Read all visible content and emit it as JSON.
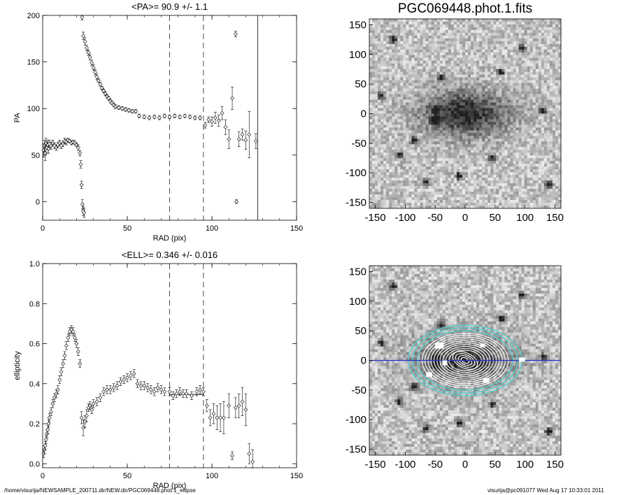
{
  "page_title": "PGC069448.phot.1.fits",
  "footer": {
    "path": "/home/visurija/NEWSAMPLE_200711.dir/NEW.dir/PGC069448.phot.1_ellipse",
    "stamp": "visurija@pc091077  Wed Aug 17 10:33:01 2011"
  },
  "colors": {
    "cyan": "#55cccc",
    "blue": "#2233cc",
    "ellipse": "#ffffff"
  },
  "chart_data": [
    {
      "type": "scatter",
      "title": "<PA>=  90.9 +/-   1.1",
      "xlabel": "RAD (pix)",
      "ylabel": "PA",
      "xlim": [
        0,
        150
      ],
      "ylim": [
        -20,
        200
      ],
      "xticks": [
        "0",
        "50",
        "100",
        "150"
      ],
      "yticks": [
        "0",
        "50",
        "100",
        "150",
        "200"
      ],
      "dashed_lines_x": [
        75,
        95
      ],
      "solid_line_x": 127,
      "points": [
        [
          0.5,
          55,
          7
        ],
        [
          1,
          60,
          6
        ],
        [
          1.5,
          52,
          8
        ],
        [
          2,
          63,
          5
        ],
        [
          2.5,
          58,
          6
        ],
        [
          3,
          61,
          5
        ],
        [
          3.5,
          57,
          5
        ],
        [
          4,
          62,
          4
        ],
        [
          5,
          60,
          4
        ],
        [
          6,
          63,
          3
        ],
        [
          7,
          60,
          3
        ],
        [
          8,
          58,
          3
        ],
        [
          9,
          61,
          3
        ],
        [
          10,
          63,
          3
        ],
        [
          11,
          60,
          3
        ],
        [
          12,
          62,
          3
        ],
        [
          13,
          65,
          3
        ],
        [
          14,
          64,
          3
        ],
        [
          15,
          66,
          2
        ],
        [
          16,
          65,
          2
        ],
        [
          17,
          63,
          2
        ],
        [
          18,
          64,
          2
        ],
        [
          19,
          63,
          2
        ],
        [
          20,
          61,
          2
        ],
        [
          21,
          58,
          3
        ],
        [
          22,
          52,
          3
        ],
        [
          22.5,
          40,
          4
        ],
        [
          23,
          18,
          4
        ],
        [
          23.5,
          -3,
          5
        ],
        [
          24,
          -10,
          5
        ],
        [
          24.5,
          -12,
          5
        ],
        [
          23.3,
          198,
          3
        ],
        [
          24,
          178,
          4
        ],
        [
          25,
          172,
          4
        ],
        [
          26,
          165,
          3
        ],
        [
          27,
          160,
          3
        ],
        [
          28,
          155,
          3
        ],
        [
          29,
          149,
          3
        ],
        [
          30,
          144,
          3
        ],
        [
          31,
          139,
          3
        ],
        [
          32,
          134,
          3
        ],
        [
          33,
          130,
          2
        ],
        [
          34,
          126,
          2
        ],
        [
          35,
          122,
          2
        ],
        [
          36,
          119,
          2
        ],
        [
          37,
          116,
          2
        ],
        [
          38,
          113,
          2
        ],
        [
          39,
          111,
          2
        ],
        [
          40,
          108,
          2
        ],
        [
          41,
          106,
          2
        ],
        [
          42,
          104,
          2
        ],
        [
          43,
          102,
          2
        ],
        [
          45,
          101,
          2
        ],
        [
          47,
          100,
          2
        ],
        [
          49,
          99,
          2
        ],
        [
          51,
          98,
          2
        ],
        [
          53,
          97,
          2
        ],
        [
          55,
          97,
          2
        ],
        [
          57,
          92,
          2
        ],
        [
          60,
          91,
          2
        ],
        [
          63,
          90,
          2
        ],
        [
          66,
          91,
          2
        ],
        [
          69,
          90,
          2
        ],
        [
          72,
          92,
          2
        ],
        [
          75,
          91,
          2
        ],
        [
          78,
          92,
          2
        ],
        [
          81,
          91,
          2
        ],
        [
          84,
          92,
          2
        ],
        [
          87,
          91,
          2
        ],
        [
          90,
          90,
          2
        ],
        [
          93,
          90,
          2
        ],
        [
          96,
          82,
          3
        ],
        [
          98,
          88,
          3
        ],
        [
          100,
          86,
          5
        ],
        [
          102,
          90,
          6
        ],
        [
          104,
          87,
          6
        ],
        [
          106,
          95,
          7
        ],
        [
          108,
          80,
          8
        ],
        [
          110,
          67,
          10
        ],
        [
          112,
          111,
          12
        ],
        [
          114,
          180,
          3
        ],
        [
          114.5,
          0,
          2
        ],
        [
          116,
          67,
          8
        ],
        [
          118,
          72,
          6
        ],
        [
          120,
          66,
          10
        ],
        [
          122,
          72,
          25
        ],
        [
          126,
          65,
          8
        ]
      ]
    },
    {
      "type": "scatter",
      "title": "<ELL>= 0.346 +/-  0.016",
      "xlabel": "RAD (pix)",
      "ylabel": "ellipticity",
      "xlim": [
        0,
        150
      ],
      "ylim": [
        -0.02,
        1.0
      ],
      "xticks": [
        "0",
        "50",
        "100",
        "150"
      ],
      "yticks": [
        "0.0",
        "0.2",
        "0.4",
        "0.6",
        "0.8",
        "1.0"
      ],
      "dashed_lines_x": [
        75,
        95
      ],
      "solid_segment": {
        "x": [
          75,
          95
        ],
        "y": 0.346
      },
      "points": [
        [
          0.5,
          0.05,
          0.02
        ],
        [
          1,
          0.07,
          0.02
        ],
        [
          1.5,
          0.09,
          0.02
        ],
        [
          2,
          0.12,
          0.02
        ],
        [
          2.5,
          0.15,
          0.02
        ],
        [
          3,
          0.17,
          0.02
        ],
        [
          3.5,
          0.2,
          0.02
        ],
        [
          4,
          0.23,
          0.02
        ],
        [
          5,
          0.26,
          0.02
        ],
        [
          6,
          0.3,
          0.02
        ],
        [
          7,
          0.33,
          0.02
        ],
        [
          8,
          0.35,
          0.02
        ],
        [
          9,
          0.37,
          0.02
        ],
        [
          10,
          0.42,
          0.02
        ],
        [
          11,
          0.46,
          0.02
        ],
        [
          12,
          0.5,
          0.02
        ],
        [
          13,
          0.54,
          0.02
        ],
        [
          14,
          0.59,
          0.02
        ],
        [
          15,
          0.63,
          0.02
        ],
        [
          16,
          0.66,
          0.02
        ],
        [
          17,
          0.67,
          0.02
        ],
        [
          18,
          0.66,
          0.02
        ],
        [
          19,
          0.63,
          0.02
        ],
        [
          20,
          0.6,
          0.02
        ],
        [
          21,
          0.56,
          0.02
        ],
        [
          22,
          0.5,
          0.02
        ],
        [
          23,
          0.23,
          0.03
        ],
        [
          24,
          0.18,
          0.04
        ],
        [
          25,
          0.21,
          0.03
        ],
        [
          26,
          0.24,
          0.03
        ],
        [
          27,
          0.28,
          0.02
        ],
        [
          28,
          0.29,
          0.02
        ],
        [
          29,
          0.27,
          0.02
        ],
        [
          30,
          0.3,
          0.02
        ],
        [
          32,
          0.31,
          0.02
        ],
        [
          34,
          0.33,
          0.02
        ],
        [
          36,
          0.36,
          0.02
        ],
        [
          38,
          0.37,
          0.02
        ],
        [
          40,
          0.37,
          0.02
        ],
        [
          42,
          0.38,
          0.02
        ],
        [
          44,
          0.39,
          0.02
        ],
        [
          46,
          0.41,
          0.02
        ],
        [
          48,
          0.42,
          0.02
        ],
        [
          50,
          0.43,
          0.02
        ],
        [
          52,
          0.44,
          0.02
        ],
        [
          54,
          0.45,
          0.02
        ],
        [
          56,
          0.4,
          0.02
        ],
        [
          58,
          0.39,
          0.02
        ],
        [
          60,
          0.39,
          0.02
        ],
        [
          62,
          0.38,
          0.02
        ],
        [
          64,
          0.37,
          0.02
        ],
        [
          66,
          0.36,
          0.02
        ],
        [
          68,
          0.38,
          0.02
        ],
        [
          70,
          0.37,
          0.02
        ],
        [
          72,
          0.36,
          0.02
        ],
        [
          75,
          0.36,
          0.02
        ],
        [
          77,
          0.34,
          0.02
        ],
        [
          79,
          0.35,
          0.02
        ],
        [
          81,
          0.36,
          0.02
        ],
        [
          83,
          0.35,
          0.02
        ],
        [
          85,
          0.35,
          0.02
        ],
        [
          88,
          0.34,
          0.02
        ],
        [
          91,
          0.36,
          0.02
        ],
        [
          93,
          0.37,
          0.02
        ],
        [
          95,
          0.36,
          0.02
        ],
        [
          97,
          0.29,
          0.03
        ],
        [
          99,
          0.23,
          0.04
        ],
        [
          101,
          0.25,
          0.05
        ],
        [
          103,
          0.23,
          0.06
        ],
        [
          105,
          0.23,
          0.07
        ],
        [
          107,
          0.23,
          0.08
        ],
        [
          110,
          0.29,
          0.06
        ],
        [
          112,
          0.04,
          0.02
        ],
        [
          114,
          0.28,
          0.05
        ],
        [
          116,
          0.29,
          0.06
        ],
        [
          118,
          0.31,
          0.07
        ],
        [
          120,
          0.27,
          0.08
        ],
        [
          122,
          0.05,
          0.05
        ],
        [
          124,
          0.01,
          0.06
        ]
      ]
    },
    {
      "type": "image",
      "title": "PGC069448.phot.1.fits",
      "xlim": [
        -160,
        160
      ],
      "ylim": [
        -160,
        160
      ],
      "xticks": [
        "-150",
        "-100",
        "-50",
        "0",
        "50",
        "100",
        "150"
      ],
      "yticks": [
        "150",
        "100",
        "50",
        "0",
        "-50",
        "-100",
        "-150"
      ]
    },
    {
      "type": "image",
      "title": "",
      "xlim": [
        -160,
        160
      ],
      "ylim": [
        -160,
        160
      ],
      "xticks": [
        "-150",
        "-100",
        "-50",
        "0",
        "50",
        "100",
        "150"
      ],
      "yticks": [
        "150",
        "100",
        "50",
        "0",
        "-50",
        "-100",
        "-150"
      ]
    }
  ]
}
